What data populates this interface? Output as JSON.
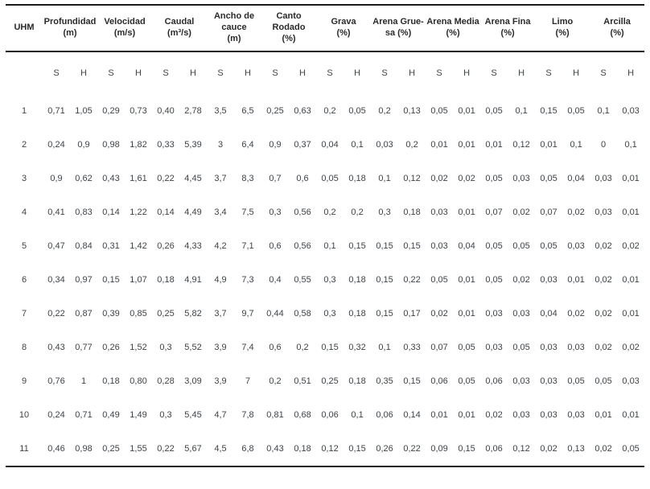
{
  "table": {
    "corner_label": "UHM",
    "subheaders": [
      "S",
      "H"
    ],
    "groups": [
      {
        "name": "profundidad",
        "lines": [
          "Profundidad",
          "(m)"
        ]
      },
      {
        "name": "velocidad",
        "lines": [
          "Velocidad",
          "(m/s)"
        ]
      },
      {
        "name": "caudal",
        "lines": [
          "Caudal",
          "(m³/s)"
        ]
      },
      {
        "name": "ancho-de-cauce",
        "lines": [
          "Ancho de",
          "cauce",
          "(m)"
        ]
      },
      {
        "name": "canto-rodado",
        "lines": [
          "Canto Rodado",
          "(%)"
        ]
      },
      {
        "name": "grava",
        "lines": [
          "Grava",
          "(%)"
        ]
      },
      {
        "name": "arena-gruesa",
        "lines": [
          "Arena Grue-",
          "sa (%)"
        ]
      },
      {
        "name": "arena-media",
        "lines": [
          "Arena Media",
          "(%)"
        ]
      },
      {
        "name": "arena-fina",
        "lines": [
          "Arena Fina",
          "(%)"
        ]
      },
      {
        "name": "limo",
        "lines": [
          "Limo",
          "(%)"
        ]
      },
      {
        "name": "arcilla",
        "lines": [
          "Arcilla",
          "(%)"
        ]
      }
    ],
    "rows": [
      {
        "uhm": "1",
        "values": [
          "0,71",
          "1,05",
          "0,29",
          "0,73",
          "0,40",
          "2,78",
          "3,5",
          "6,5",
          "0,25",
          "0,63",
          "0,2",
          "0,05",
          "0,2",
          "0,13",
          "0,05",
          "0,01",
          "0,05",
          "0,1",
          "0,15",
          "0,05",
          "0,1",
          "0,03"
        ]
      },
      {
        "uhm": "2",
        "values": [
          "0,24",
          "0,9",
          "0,98",
          "1,82",
          "0,33",
          "5,39",
          "3",
          "6,4",
          "0,9",
          "0,37",
          "0,04",
          "0,1",
          "0,03",
          "0,2",
          "0,01",
          "0,01",
          "0,01",
          "0,12",
          "0,01",
          "0,1",
          "0",
          "0,1"
        ]
      },
      {
        "uhm": "3",
        "values": [
          "0,9",
          "0,62",
          "0,43",
          "1,61",
          "0,22",
          "4,45",
          "3,7",
          "8,3",
          "0,7",
          "0,6",
          "0,05",
          "0,18",
          "0,1",
          "0,12",
          "0,02",
          "0,02",
          "0,05",
          "0,03",
          "0,05",
          "0,04",
          "0,03",
          "0,01"
        ]
      },
      {
        "uhm": "4",
        "values": [
          "0,41",
          "0,83",
          "0,14",
          "1,22",
          "0,14",
          "4,49",
          "3,4",
          "7,5",
          "0,3",
          "0,56",
          "0,2",
          "0,2",
          "0,3",
          "0,18",
          "0,03",
          "0,01",
          "0,07",
          "0,02",
          "0,07",
          "0,02",
          "0,03",
          "0,01"
        ]
      },
      {
        "uhm": "5",
        "values": [
          "0,47",
          "0,84",
          "0,31",
          "1,42",
          "0,26",
          "4,33",
          "4,2",
          "7,1",
          "0,6",
          "0,56",
          "0,1",
          "0,15",
          "0,15",
          "0,15",
          "0,03",
          "0,04",
          "0,05",
          "0,05",
          "0,05",
          "0,03",
          "0,02",
          "0,02"
        ]
      },
      {
        "uhm": "6",
        "values": [
          "0,34",
          "0,97",
          "0,15",
          "1,07",
          "0,18",
          "4,91",
          "4,9",
          "7,3",
          "0,4",
          "0,55",
          "0,3",
          "0,18",
          "0,15",
          "0,22",
          "0,05",
          "0,01",
          "0,05",
          "0,02",
          "0,03",
          "0,01",
          "0,02",
          "0,01"
        ]
      },
      {
        "uhm": "7",
        "values": [
          "0,22",
          "0,87",
          "0,39",
          "0,85",
          "0,25",
          "5,82",
          "3,7",
          "9,7",
          "0,44",
          "0,58",
          "0,3",
          "0,18",
          "0,15",
          "0,17",
          "0,02",
          "0,01",
          "0,03",
          "0,03",
          "0,04",
          "0,02",
          "0,02",
          "0,01"
        ]
      },
      {
        "uhm": "8",
        "values": [
          "0,43",
          "0,77",
          "0,26",
          "1,52",
          "0,3",
          "5,52",
          "3,9",
          "7,4",
          "0,6",
          "0,2",
          "0,15",
          "0,32",
          "0,1",
          "0,33",
          "0,07",
          "0,05",
          "0,03",
          "0,05",
          "0,03",
          "0,03",
          "0,02",
          "0,02"
        ]
      },
      {
        "uhm": "9",
        "values": [
          "0,76",
          "1",
          "0,18",
          "0,80",
          "0,28",
          "3,09",
          "3,9",
          "7",
          "0,2",
          "0,51",
          "0,25",
          "0,18",
          "0,35",
          "0,15",
          "0,06",
          "0,05",
          "0,06",
          "0,03",
          "0,03",
          "0,05",
          "0,05",
          "0,03"
        ]
      },
      {
        "uhm": "10",
        "values": [
          "0,24",
          "0,71",
          "0,49",
          "1,49",
          "0,3",
          "5,45",
          "4,7",
          "7,8",
          "0,81",
          "0,68",
          "0,06",
          "0,1",
          "0,06",
          "0,14",
          "0,01",
          "0,01",
          "0,02",
          "0,03",
          "0,03",
          "0,03",
          "0,01",
          "0,01"
        ]
      },
      {
        "uhm": "11",
        "values": [
          "0,46",
          "0,98",
          "0,25",
          "1,55",
          "0,22",
          "5,67",
          "4,5",
          "6,8",
          "0,43",
          "0,18",
          "0,12",
          "0,15",
          "0,26",
          "0,22",
          "0,09",
          "0,15",
          "0,06",
          "0,12",
          "0,02",
          "0,13",
          "0,02",
          "0,05"
        ]
      }
    ]
  }
}
